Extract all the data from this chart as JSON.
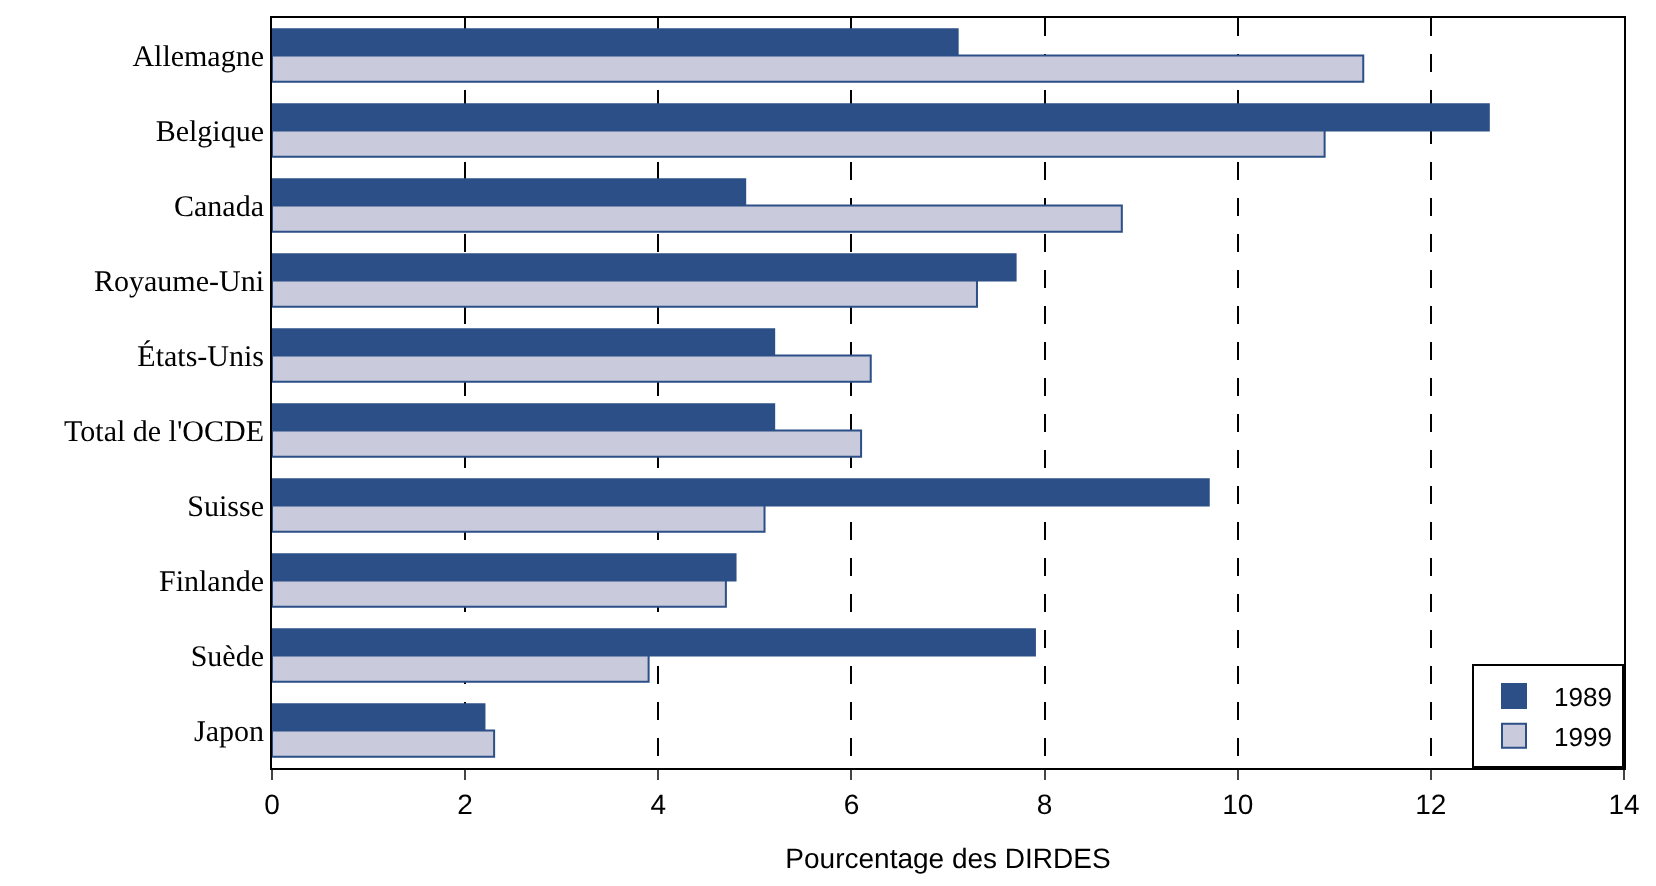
{
  "chart_data": {
    "type": "bar",
    "orientation": "horizontal",
    "xlabel": "Pourcentage des DIRDES",
    "categories": [
      "Allemagne",
      "Belgique",
      "Canada",
      "Royaume-Uni",
      "États-Unis",
      "Total de l'OCDE",
      "Suisse",
      "Finlande",
      "Suède",
      "Japon"
    ],
    "series": [
      {
        "name": "1989",
        "color": "#2b4f86",
        "values": [
          7.1,
          12.6,
          4.9,
          7.7,
          5.2,
          5.2,
          9.7,
          4.8,
          7.9,
          2.2
        ]
      },
      {
        "name": "1999",
        "color": "#c9cadb",
        "values": [
          11.3,
          10.9,
          8.8,
          7.3,
          6.2,
          6.1,
          5.1,
          4.7,
          3.9,
          2.3
        ]
      }
    ],
    "xlim": [
      0,
      14
    ],
    "xticks": [
      0,
      2,
      4,
      6,
      8,
      10,
      12,
      14
    ],
    "grid": "x",
    "legend": "bottom right"
  }
}
